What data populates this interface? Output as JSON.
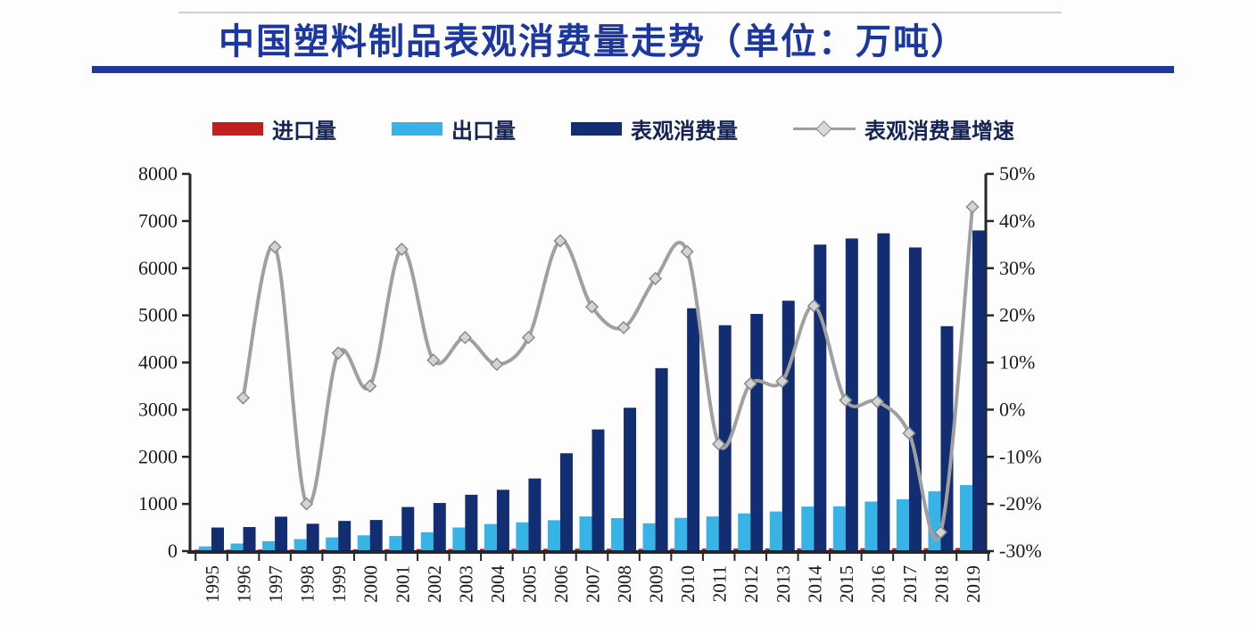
{
  "page": {
    "title": "中国塑料制品表观消费量走势（单位：万吨）"
  },
  "colors": {
    "title": "#1c38a0",
    "underline": "#1d3a96",
    "imports": "#c21f1f",
    "exports": "#38b3e6",
    "consumption": "#132d72",
    "growth_line": "#a0a0a0",
    "marker_fill": "#d4d4d4",
    "marker_stroke": "#8a8a8a",
    "axis": "#24262e",
    "tick_text": "#1a1a1e"
  },
  "chart_data": {
    "type": "bar",
    "title": "中国塑料制品表观消费量走势（单位：万吨）",
    "categories": [
      "1995",
      "1996",
      "1997",
      "1998",
      "1999",
      "2000",
      "2001",
      "2002",
      "2003",
      "2004",
      "2005",
      "2006",
      "2007",
      "2008",
      "2009",
      "2010",
      "2011",
      "2012",
      "2013",
      "2014",
      "2015",
      "2016",
      "2017",
      "2018",
      "2019"
    ],
    "series": [
      {
        "key": "imports",
        "name": "进口量",
        "type": "bar",
        "axis": "left",
        "color": "#c21f1f",
        "values": [
          30,
          32,
          35,
          35,
          38,
          40,
          42,
          44,
          46,
          48,
          50,
          50,
          52,
          52,
          50,
          52,
          54,
          55,
          56,
          58,
          58,
          60,
          60,
          62,
          65
        ]
      },
      {
        "key": "exports",
        "name": "出口量",
        "type": "bar",
        "axis": "left",
        "color": "#38b3e6",
        "values": [
          100,
          160,
          210,
          255,
          290,
          335,
          320,
          400,
          500,
          575,
          610,
          655,
          735,
          700,
          590,
          705,
          735,
          800,
          840,
          945,
          950,
          1050,
          1100,
          1270,
          1400
        ]
      },
      {
        "key": "consumption",
        "name": "表观消费量",
        "type": "bar",
        "axis": "left",
        "color": "#132d72",
        "values": [
          500,
          510,
          730,
          580,
          640,
          660,
          935,
          1020,
          1195,
          1300,
          1540,
          2075,
          2580,
          3040,
          3880,
          5150,
          4790,
          5030,
          5310,
          6500,
          6630,
          6740,
          6440,
          4770,
          6800
        ]
      },
      {
        "key": "growth",
        "name": "表观消费量增速",
        "type": "line",
        "axis": "right",
        "color": "#a0a0a0",
        "unit": "%",
        "values": [
          null,
          2.5,
          34.5,
          -20,
          12,
          5,
          34,
          10.5,
          15.3,
          9.6,
          15.3,
          35.8,
          21.8,
          17.4,
          27.8,
          33.5,
          -7.3,
          5.5,
          6,
          22,
          2,
          1.7,
          -5,
          -26,
          43
        ]
      }
    ],
    "left_axis": {
      "min": 0,
      "max": 8000,
      "ticks": [
        0,
        1000,
        2000,
        3000,
        4000,
        5000,
        6000,
        7000,
        8000
      ],
      "unit": ""
    },
    "right_axis": {
      "min": -30,
      "max": 50,
      "ticks": [
        -30,
        -20,
        -10,
        0,
        10,
        20,
        30,
        40,
        50
      ],
      "unit": "%"
    },
    "legend_position": "top",
    "grid": false,
    "xlabel": "",
    "ylabel": ""
  }
}
